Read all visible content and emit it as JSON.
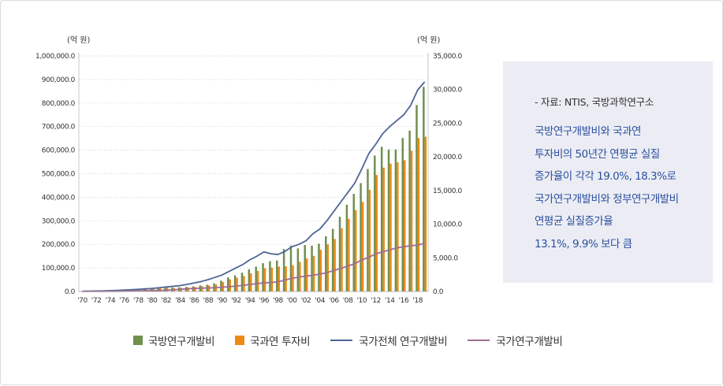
{
  "chart_data": {
    "type": "bar+line",
    "left_axis_unit": "(억 원)",
    "right_axis_unit": "(억 원)",
    "left_axis": {
      "min": 0,
      "max": 1000000,
      "ticks": [
        "0.0",
        "100,000.0",
        "200,000.0",
        "300,000.0",
        "400,000.0",
        "500,000.0",
        "600,000.0",
        "700,000.0",
        "800,000.0",
        "900,000.0",
        "1,000,000.0"
      ]
    },
    "right_axis": {
      "min": 0,
      "max": 35000,
      "ticks": [
        "0.0",
        "5,000.0",
        "10,000.0",
        "15,000.0",
        "20,000.0",
        "25,000.0",
        "30,000.0",
        "35,000.0"
      ]
    },
    "x_labels": [
      "'70",
      "'72",
      "'74",
      "'76",
      "'78",
      "'80",
      "'82",
      "'84",
      "'86",
      "'88",
      "'90",
      "'92",
      "'94",
      "'96",
      "'98",
      "'00",
      "'02",
      "'04",
      "'06",
      "'08",
      "'10",
      "'12",
      "'14",
      "'16",
      "'18"
    ],
    "years": [
      1970,
      1971,
      1972,
      1973,
      1974,
      1975,
      1976,
      1977,
      1978,
      1979,
      1980,
      1981,
      1982,
      1983,
      1984,
      1985,
      1986,
      1987,
      1988,
      1989,
      1990,
      1991,
      1992,
      1993,
      1994,
      1995,
      1996,
      1997,
      1998,
      1999,
      2000,
      2001,
      2002,
      2003,
      2004,
      2005,
      2006,
      2007,
      2008,
      2009,
      2010,
      2011,
      2012,
      2013,
      2014,
      2015,
      2016,
      2017,
      2018,
      2019
    ],
    "series": [
      {
        "name": "국방연구개발비",
        "type": "bar",
        "axis": "right",
        "color": "#6f8f4f",
        "values": [
          30,
          40,
          50,
          60,
          90,
          130,
          180,
          200,
          260,
          330,
          460,
          560,
          650,
          580,
          620,
          680,
          760,
          900,
          1000,
          1200,
          1600,
          2100,
          2400,
          2800,
          3300,
          3700,
          4200,
          4500,
          4600,
          6300,
          6800,
          6400,
          6900,
          6800,
          7100,
          8200,
          9300,
          11100,
          12900,
          14500,
          16100,
          18200,
          20200,
          21500,
          21100,
          21100,
          22800,
          23900,
          27700,
          30400
        ]
      },
      {
        "name": "국과연 투자비",
        "type": "bar",
        "axis": "right",
        "color": "#ec8a16",
        "values": [
          20,
          30,
          40,
          50,
          70,
          100,
          150,
          170,
          230,
          300,
          400,
          480,
          560,
          500,
          540,
          600,
          680,
          800,
          900,
          1050,
          1400,
          1800,
          2050,
          2300,
          2700,
          3050,
          3450,
          3550,
          3700,
          3750,
          3900,
          4400,
          4900,
          5300,
          6200,
          7000,
          7800,
          9400,
          10800,
          12100,
          13300,
          15100,
          17300,
          18400,
          19000,
          19200,
          19500,
          20900,
          22800,
          23000
        ]
      },
      {
        "name": "국가전체 연구개발비",
        "type": "line",
        "axis": "left",
        "color": "#4e6596",
        "values": [
          1000,
          1500,
          2000,
          2500,
          3500,
          4500,
          6000,
          7500,
          9000,
          11000,
          13000,
          16000,
          19000,
          22000,
          25000,
          30000,
          36000,
          42000,
          50000,
          60000,
          70000,
          85000,
          100000,
          115000,
          135000,
          150000,
          168000,
          160000,
          157000,
          170000,
          190000,
          200000,
          215000,
          245000,
          265000,
          300000,
          340000,
          380000,
          420000,
          460000,
          520000,
          585000,
          625000,
          670000,
          700000,
          725000,
          750000,
          790000,
          855000,
          890000
        ]
      },
      {
        "name": "국가연구개발비",
        "type": "line",
        "axis": "left",
        "color": "#a06d90",
        "values": [
          300,
          400,
          500,
          600,
          800,
          1000,
          1500,
          2000,
          2500,
          3000,
          3500,
          4500,
          5500,
          7000,
          9000,
          11000,
          13000,
          14000,
          15000,
          16000,
          18000,
          20000,
          23000,
          26000,
          30000,
          33000,
          37000,
          38000,
          41000,
          48000,
          56000,
          61000,
          65000,
          69000,
          74000,
          80000,
          89000,
          98000,
          108000,
          118000,
          134000,
          145000,
          160000,
          168000,
          177000,
          185000,
          190000,
          194000,
          197000,
          205000
        ]
      }
    ]
  },
  "info": {
    "source": "- 자료: NTIS, 국방과학연구소",
    "lines": [
      "국방연구개발비와 국과연",
      "투자비의 50년간 연평균 실질",
      "증가율이 각각 19.0%, 18.3%로",
      "국가연구개발비와 정부연구개발비",
      "연평균 실질증가율",
      "13.1%, 9.9% 보다 큼"
    ]
  },
  "legend": [
    {
      "label": "국방연구개발비",
      "kind": "bar",
      "color": "#6f8f4f"
    },
    {
      "label": "국과연 투자비",
      "kind": "bar",
      "color": "#ec8a16"
    },
    {
      "label": "국가전체 연구개발비",
      "kind": "line",
      "color": "#4e6596"
    },
    {
      "label": "국가연구개발비",
      "kind": "line",
      "color": "#a06d90"
    }
  ]
}
